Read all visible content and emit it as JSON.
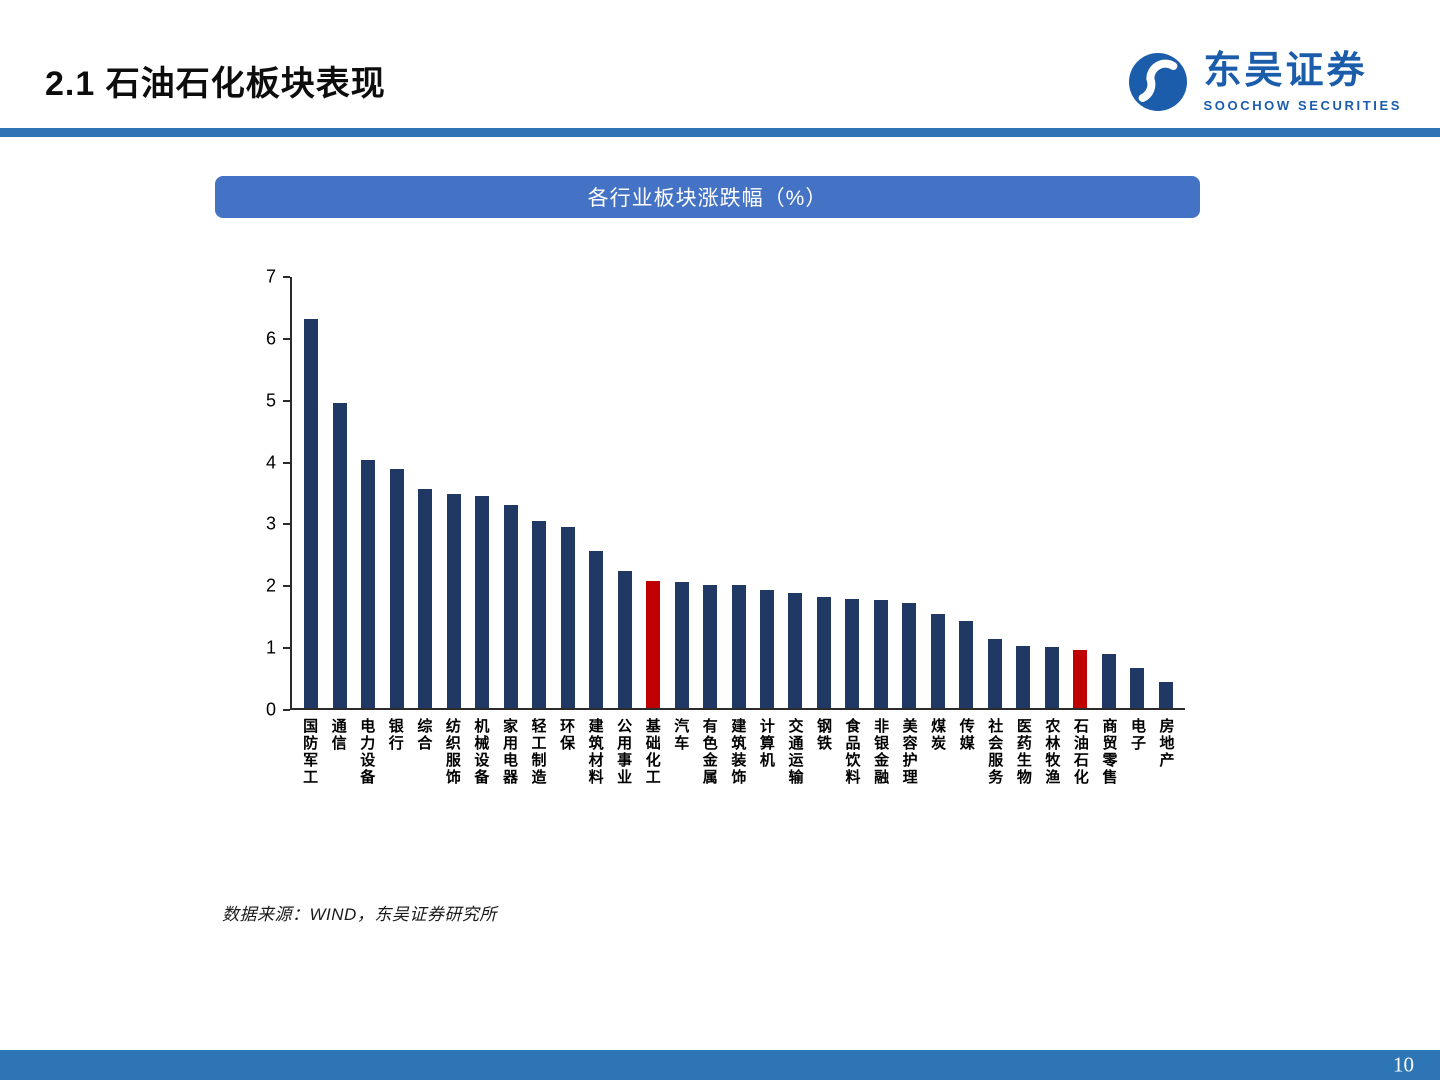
{
  "slide": {
    "title": "2.1 石油石化板块表现",
    "source_note": "数据来源：WIND，东吴证券研究所",
    "page_number": "10"
  },
  "logo": {
    "brand": "东吴证券",
    "brand_en": "SOOCHOW SECURITIES"
  },
  "chart_data": {
    "type": "bar",
    "title": "各行业板块涨跌幅（%）",
    "categories": [
      "国防军工",
      "通信",
      "电力设备",
      "银行",
      "综合",
      "纺织服饰",
      "机械设备",
      "家用电器",
      "轻工制造",
      "环保",
      "建筑材料",
      "公用事业",
      "基础化工",
      "汽车",
      "有色金属",
      "建筑装饰",
      "计算机",
      "交通运输",
      "钢铁",
      "食品饮料",
      "非银金融",
      "美容护理",
      "煤炭",
      "传媒",
      "社会服务",
      "医药生物",
      "农林牧渔",
      "石油石化",
      "商贸零售",
      "电子",
      "房地产"
    ],
    "values": [
      6.32,
      4.95,
      4.02,
      3.88,
      3.55,
      3.48,
      3.44,
      3.29,
      3.03,
      2.94,
      2.55,
      2.22,
      2.06,
      2.04,
      2.0,
      1.99,
      1.92,
      1.86,
      1.8,
      1.77,
      1.75,
      1.71,
      1.52,
      1.41,
      1.12,
      1.01,
      0.99,
      0.95,
      0.87,
      0.65,
      0.42
    ],
    "highlight_indices": [
      12,
      27
    ],
    "highlight_categories": [
      "基础化工",
      "石油石化"
    ],
    "ylim": [
      0,
      7
    ],
    "yticks": [
      0,
      1,
      2,
      3,
      4,
      5,
      6,
      7
    ],
    "grid": false,
    "legend": "none",
    "xlabel": "",
    "ylabel": ""
  },
  "colors": {
    "bar": "#1f3864",
    "highlight_bar": "#c00000",
    "banner_bg": "#4472c4",
    "accent_line": "#2e75b6",
    "footer_bg": "#2e75b6",
    "brand_blue": "#1b5cab"
  }
}
